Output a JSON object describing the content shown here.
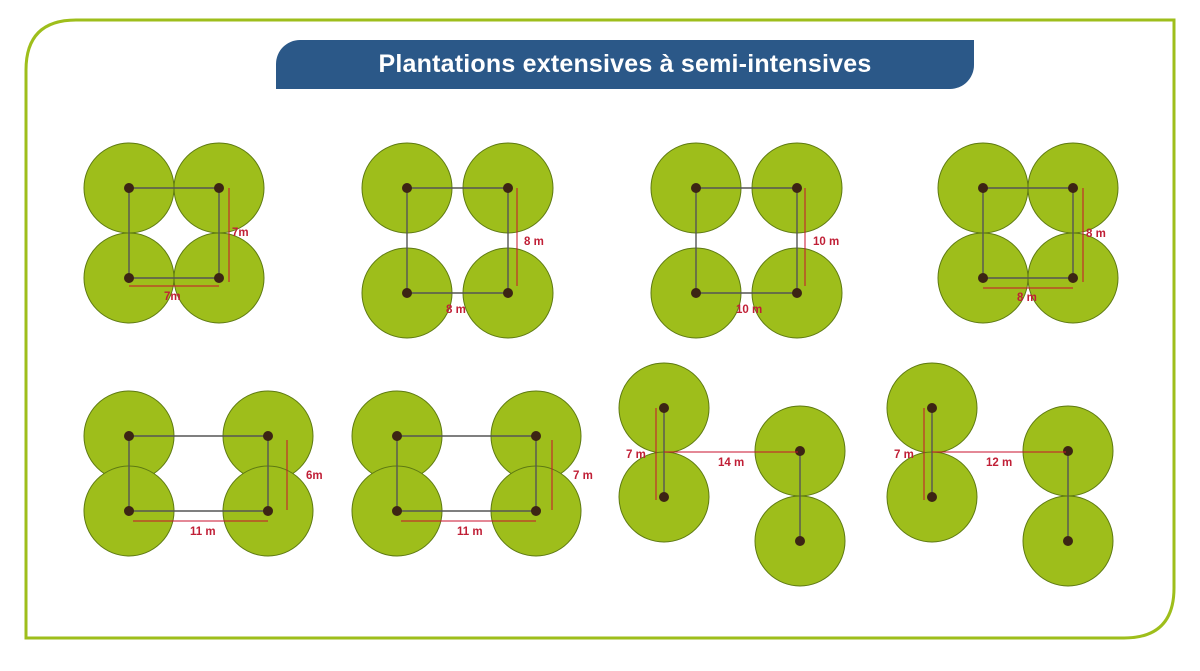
{
  "title": "Plantations extensives à semi-intensives",
  "colors": {
    "frame": "#9ebe1b",
    "title_bg": "#2b5888",
    "tree": "#9ebe1b",
    "trunk": "#3c2414",
    "dimension": "#c8102e"
  },
  "patterns": [
    {
      "id": "p1",
      "labels": [
        "7m",
        "7m"
      ]
    },
    {
      "id": "p2",
      "labels": [
        "8 m",
        "8 m"
      ]
    },
    {
      "id": "p3",
      "labels": [
        "10 m",
        "10 m"
      ]
    },
    {
      "id": "p4",
      "labels": [
        "8 m",
        "8 m"
      ]
    },
    {
      "id": "p5",
      "labels": [
        "6m",
        "11 m"
      ]
    },
    {
      "id": "p6",
      "labels": [
        "7 m",
        "11 m"
      ]
    },
    {
      "id": "p7",
      "labels": [
        "7 m",
        "14 m"
      ]
    },
    {
      "id": "p8",
      "labels": [
        "7 m",
        "12 m"
      ]
    }
  ]
}
